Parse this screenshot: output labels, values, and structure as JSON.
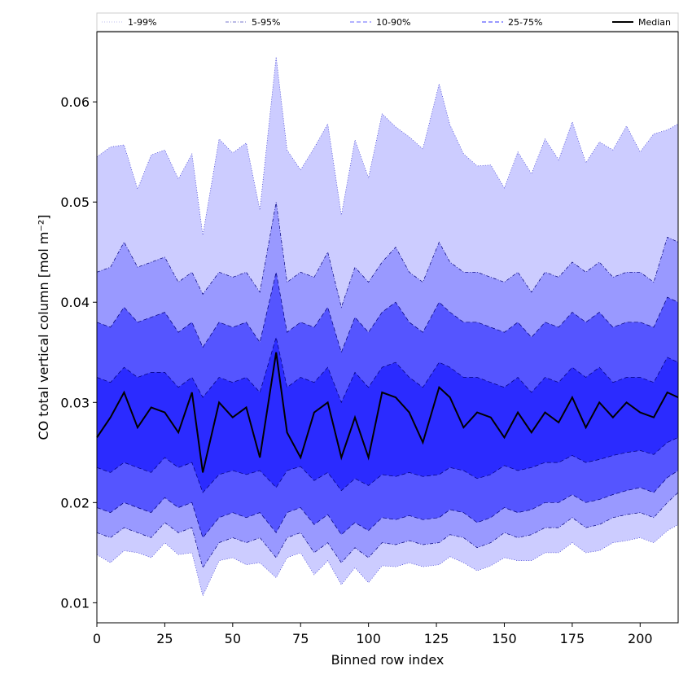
{
  "chart_data": {
    "type": "area",
    "title": "",
    "xlabel": "Binned row index",
    "ylabel": "CO total vertical column [mol m⁻²]",
    "xlim": [
      0,
      214
    ],
    "ylim": [
      0.008,
      0.067
    ],
    "x_ticks": [
      0,
      25,
      50,
      75,
      100,
      125,
      150,
      175,
      200
    ],
    "y_ticks": [
      0.01,
      0.02,
      0.03,
      0.04,
      0.05,
      0.06
    ],
    "y_tick_labels": [
      "0.01",
      "0.02",
      "0.03",
      "0.04",
      "0.05",
      "0.06"
    ],
    "grid": false,
    "legend_position": "top",
    "x": [
      0,
      5,
      10,
      15,
      20,
      25,
      30,
      35,
      39,
      45,
      50,
      55,
      60,
      66,
      70,
      75,
      80,
      85,
      90,
      95,
      100,
      105,
      110,
      115,
      120,
      126,
      130,
      135,
      140,
      145,
      150,
      155,
      160,
      165,
      170,
      175,
      180,
      185,
      190,
      195,
      200,
      205,
      210,
      214
    ],
    "series": [
      {
        "name": "1-99%",
        "color": "#ccccff",
        "line_style": "dotted",
        "upper": [
          0.0545,
          0.0555,
          0.0557,
          0.0513,
          0.0547,
          0.0552,
          0.0523,
          0.0548,
          0.0467,
          0.0563,
          0.0549,
          0.0559,
          0.0492,
          0.0645,
          0.0552,
          0.0532,
          0.0554,
          0.0578,
          0.0487,
          0.0562,
          0.0524,
          0.0588,
          0.0575,
          0.0565,
          0.0553,
          0.0618,
          0.0577,
          0.0548,
          0.0536,
          0.0537,
          0.0514,
          0.055,
          0.0528,
          0.0563,
          0.0542,
          0.058,
          0.0539,
          0.056,
          0.0552,
          0.0576,
          0.055,
          0.0568,
          0.0572,
          0.0578
        ],
        "lower": [
          0.0148,
          0.014,
          0.0152,
          0.015,
          0.0145,
          0.016,
          0.0148,
          0.015,
          0.0107,
          0.0142,
          0.0145,
          0.0138,
          0.014,
          0.0125,
          0.0145,
          0.015,
          0.0128,
          0.0142,
          0.0118,
          0.0135,
          0.012,
          0.0137,
          0.0136,
          0.014,
          0.0136,
          0.0138,
          0.0146,
          0.014,
          0.0132,
          0.0137,
          0.0145,
          0.0142,
          0.0142,
          0.015,
          0.015,
          0.016,
          0.015,
          0.0152,
          0.016,
          0.0162,
          0.0165,
          0.016,
          0.0172,
          0.0178
        ]
      },
      {
        "name": "5-95%",
        "color": "#9999ff",
        "line_style": "dashdot",
        "upper": [
          0.043,
          0.0435,
          0.046,
          0.0435,
          0.044,
          0.0445,
          0.042,
          0.043,
          0.0408,
          0.043,
          0.0425,
          0.043,
          0.041,
          0.05,
          0.042,
          0.043,
          0.0425,
          0.045,
          0.0395,
          0.0435,
          0.042,
          0.044,
          0.0455,
          0.043,
          0.042,
          0.046,
          0.044,
          0.043,
          0.043,
          0.0425,
          0.042,
          0.043,
          0.041,
          0.043,
          0.0425,
          0.044,
          0.043,
          0.044,
          0.0425,
          0.043,
          0.043,
          0.042,
          0.0465,
          0.046
        ],
        "lower": [
          0.017,
          0.0165,
          0.0175,
          0.017,
          0.0165,
          0.018,
          0.017,
          0.0175,
          0.0135,
          0.016,
          0.0165,
          0.016,
          0.0165,
          0.0145,
          0.0165,
          0.017,
          0.015,
          0.016,
          0.014,
          0.0155,
          0.0145,
          0.016,
          0.0158,
          0.0162,
          0.0158,
          0.016,
          0.0168,
          0.0165,
          0.0155,
          0.016,
          0.017,
          0.0165,
          0.0168,
          0.0175,
          0.0175,
          0.0185,
          0.0175,
          0.0178,
          0.0185,
          0.0188,
          0.019,
          0.0185,
          0.02,
          0.021
        ]
      },
      {
        "name": "10-90%",
        "color": "#5555ff",
        "line_style": "dashed",
        "upper": [
          0.038,
          0.0375,
          0.0395,
          0.038,
          0.0385,
          0.039,
          0.037,
          0.038,
          0.0355,
          0.038,
          0.0375,
          0.038,
          0.036,
          0.043,
          0.037,
          0.038,
          0.0375,
          0.0395,
          0.035,
          0.0385,
          0.037,
          0.039,
          0.04,
          0.038,
          0.037,
          0.04,
          0.039,
          0.038,
          0.038,
          0.0375,
          0.037,
          0.038,
          0.0365,
          0.038,
          0.0375,
          0.039,
          0.038,
          0.039,
          0.0375,
          0.038,
          0.038,
          0.0375,
          0.0405,
          0.04
        ],
        "lower": [
          0.0195,
          0.019,
          0.02,
          0.0195,
          0.019,
          0.0205,
          0.0195,
          0.02,
          0.0165,
          0.0185,
          0.019,
          0.0185,
          0.019,
          0.017,
          0.019,
          0.0195,
          0.0178,
          0.0188,
          0.0168,
          0.018,
          0.0172,
          0.0185,
          0.0183,
          0.0187,
          0.0183,
          0.0185,
          0.0193,
          0.019,
          0.018,
          0.0185,
          0.0195,
          0.019,
          0.0193,
          0.02,
          0.02,
          0.0208,
          0.02,
          0.0203,
          0.0208,
          0.0212,
          0.0215,
          0.021,
          0.0225,
          0.0232
        ]
      },
      {
        "name": "25-75%",
        "color": "#2b2bff",
        "line_style": "dashed",
        "upper": [
          0.0325,
          0.032,
          0.0335,
          0.0325,
          0.033,
          0.033,
          0.0315,
          0.0325,
          0.0305,
          0.0325,
          0.032,
          0.0325,
          0.031,
          0.0365,
          0.0315,
          0.0325,
          0.032,
          0.0335,
          0.03,
          0.033,
          0.0315,
          0.0335,
          0.034,
          0.0325,
          0.0315,
          0.034,
          0.0335,
          0.0325,
          0.0325,
          0.032,
          0.0315,
          0.0325,
          0.031,
          0.0325,
          0.032,
          0.0335,
          0.0325,
          0.0335,
          0.032,
          0.0325,
          0.0325,
          0.032,
          0.0345,
          0.034
        ],
        "lower": [
          0.0235,
          0.023,
          0.024,
          0.0235,
          0.023,
          0.0245,
          0.0235,
          0.024,
          0.021,
          0.0228,
          0.0232,
          0.0228,
          0.0232,
          0.0215,
          0.0232,
          0.0236,
          0.0222,
          0.023,
          0.0212,
          0.0224,
          0.0217,
          0.0228,
          0.0226,
          0.023,
          0.0226,
          0.0228,
          0.0235,
          0.0232,
          0.0224,
          0.0228,
          0.0237,
          0.0232,
          0.0235,
          0.024,
          0.024,
          0.0247,
          0.024,
          0.0243,
          0.0247,
          0.025,
          0.0252,
          0.0248,
          0.026,
          0.0265
        ]
      },
      {
        "name": "Median",
        "color": "#000000",
        "line_style": "solid",
        "values": [
          0.0265,
          0.0285,
          0.031,
          0.0275,
          0.0295,
          0.029,
          0.027,
          0.031,
          0.023,
          0.03,
          0.0285,
          0.0295,
          0.0245,
          0.035,
          0.027,
          0.0245,
          0.029,
          0.03,
          0.0245,
          0.0285,
          0.0245,
          0.031,
          0.0305,
          0.029,
          0.026,
          0.0315,
          0.0305,
          0.0275,
          0.029,
          0.0285,
          0.0265,
          0.029,
          0.027,
          0.029,
          0.028,
          0.0305,
          0.0275,
          0.03,
          0.0285,
          0.03,
          0.029,
          0.0285,
          0.031,
          0.0305
        ]
      }
    ]
  }
}
